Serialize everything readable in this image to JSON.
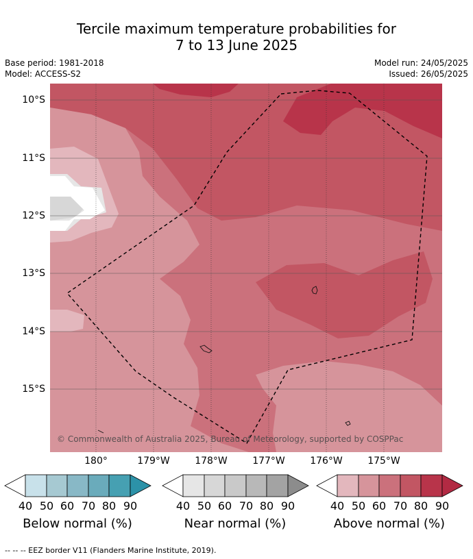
{
  "title": {
    "line1": "Tercile maximum temperature probabilities for",
    "line2": "7 to 13 June 2025"
  },
  "meta": {
    "base_period": "Base period: 1981-2018",
    "model": "Model: ACCESS-S2",
    "model_run": "Model run: 24/05/2025",
    "issued": "Issued: 26/05/2025"
  },
  "map": {
    "lat_labels": [
      "10°S",
      "11°S",
      "12°S",
      "13°S",
      "14°S",
      "15°S"
    ],
    "lon_labels": [
      "180°",
      "179°W",
      "178°W",
      "177°W",
      "176°W",
      "175°W"
    ],
    "copyright": "© Commonwealth of Australia 2025, Bureau of Meteorology, supported by COSPPac"
  },
  "colorbars": [
    {
      "title": "Below normal (%)",
      "ticks": [
        "40",
        "50",
        "60",
        "70",
        "80",
        "90"
      ],
      "colors": [
        "#c8e1ea",
        "#a6c9d2",
        "#88b8c6",
        "#6aabbb",
        "#46a0b2",
        "#2c92a8"
      ]
    },
    {
      "title": "Near normal (%)",
      "ticks": [
        "40",
        "50",
        "60",
        "70",
        "80",
        "90"
      ],
      "colors": [
        "#e6e6e6",
        "#d7d7d7",
        "#c9c9c9",
        "#b8b8b8",
        "#a3a3a3",
        "#8c8c8c"
      ]
    },
    {
      "title": "Above normal (%)",
      "ticks": [
        "40",
        "50",
        "60",
        "70",
        "80",
        "90"
      ],
      "colors": [
        "#e3b7bd",
        "#d6949b",
        "#cb717c",
        "#c25663",
        "#b8344a",
        "#b22a43"
      ]
    }
  ],
  "footer": "--  --  -- EEZ border V11 (Flanders Marine Institute, 2019)."
}
